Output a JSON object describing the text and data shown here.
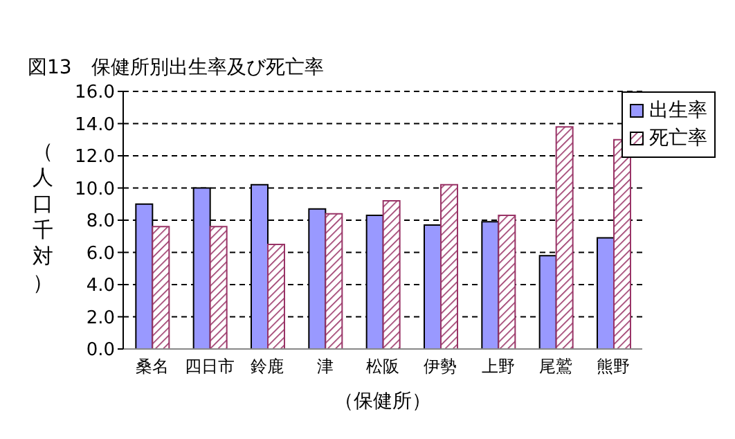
{
  "chart_data": {
    "type": "bar",
    "title": "図13　保健所別出生率及び死亡率",
    "xlabel": "（保健所）",
    "ylabel": "（人口千対）",
    "categories": [
      "桑名",
      "四日市",
      "鈴鹿",
      "津",
      "松阪",
      "伊勢",
      "上野",
      "尾鷲",
      "熊野"
    ],
    "series": [
      {
        "name": "出生率",
        "color": "#9999ff",
        "values": [
          9.0,
          10.0,
          10.2,
          8.7,
          8.3,
          7.7,
          7.9,
          5.8,
          6.9
        ]
      },
      {
        "name": "死亡率",
        "color": "#993366",
        "values": [
          7.6,
          7.6,
          6.5,
          8.4,
          9.2,
          10.2,
          8.3,
          13.8,
          13.0
        ]
      }
    ],
    "ylim": [
      0,
      16
    ],
    "yticks": [
      {
        "value": 0,
        "label": "0.0"
      },
      {
        "value": 2,
        "label": "2.0"
      },
      {
        "value": 4,
        "label": "4.0"
      },
      {
        "value": 6,
        "label": "6.0"
      },
      {
        "value": 8,
        "label": "8.0"
      },
      {
        "value": 10,
        "label": "10.0"
      },
      {
        "value": 12,
        "label": "12.0"
      },
      {
        "value": 14,
        "label": "14.0"
      },
      {
        "value": 16,
        "label": "16.0"
      }
    ],
    "grid": "y",
    "legend": "top right"
  }
}
